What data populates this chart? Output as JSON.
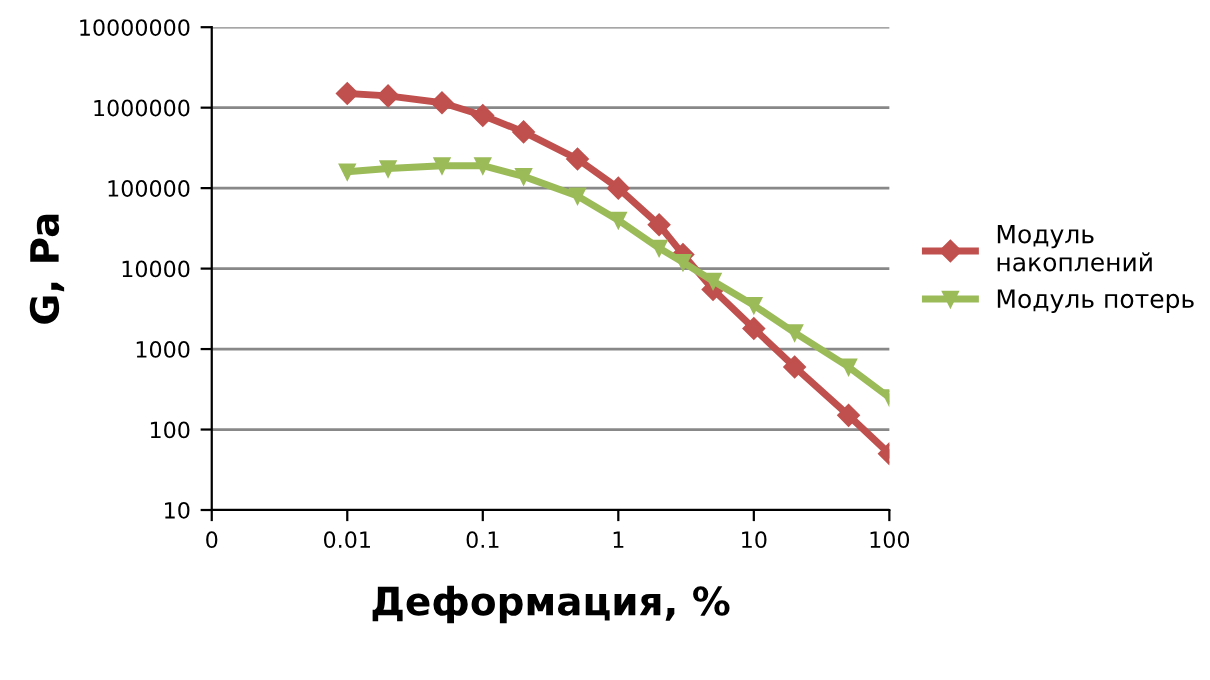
{
  "chart_data": {
    "type": "line",
    "xlabel": "Деформация, %",
    "ylabel": "G, Pa",
    "log": "xy",
    "grid": "y",
    "legend": "right",
    "xlim": [
      0.001,
      100
    ],
    "xticks": [
      {
        "value": 0.001,
        "label": "0"
      },
      0.01,
      0.1,
      1,
      10,
      100
    ],
    "ylim": [
      10,
      10000000
    ],
    "yticks": [
      10,
      100,
      1000,
      10000,
      100000,
      1000000,
      10000000
    ],
    "series": [
      {
        "name": "Модуль накоплений",
        "color": "#c0504d",
        "marker": "diamond",
        "x": [
          0.01,
          0.02,
          0.05,
          0.1,
          0.2,
          0.5,
          1,
          2,
          3,
          5,
          10,
          20,
          50,
          100
        ],
        "values": [
          1500000,
          1400000,
          1150000,
          800000,
          500000,
          230000,
          100000,
          35000,
          15000,
          5500,
          1800,
          600,
          150,
          50
        ]
      },
      {
        "name": "Модуль потерь",
        "color": "#9bbb59",
        "marker": "triangle",
        "x": [
          0.01,
          0.02,
          0.05,
          0.1,
          0.2,
          0.5,
          1,
          2,
          3,
          5,
          10,
          20,
          50,
          100
        ],
        "values": [
          160000,
          175000,
          190000,
          190000,
          140000,
          80000,
          40000,
          18000,
          12000,
          7000,
          3500,
          1600,
          600,
          250
        ]
      }
    ]
  }
}
